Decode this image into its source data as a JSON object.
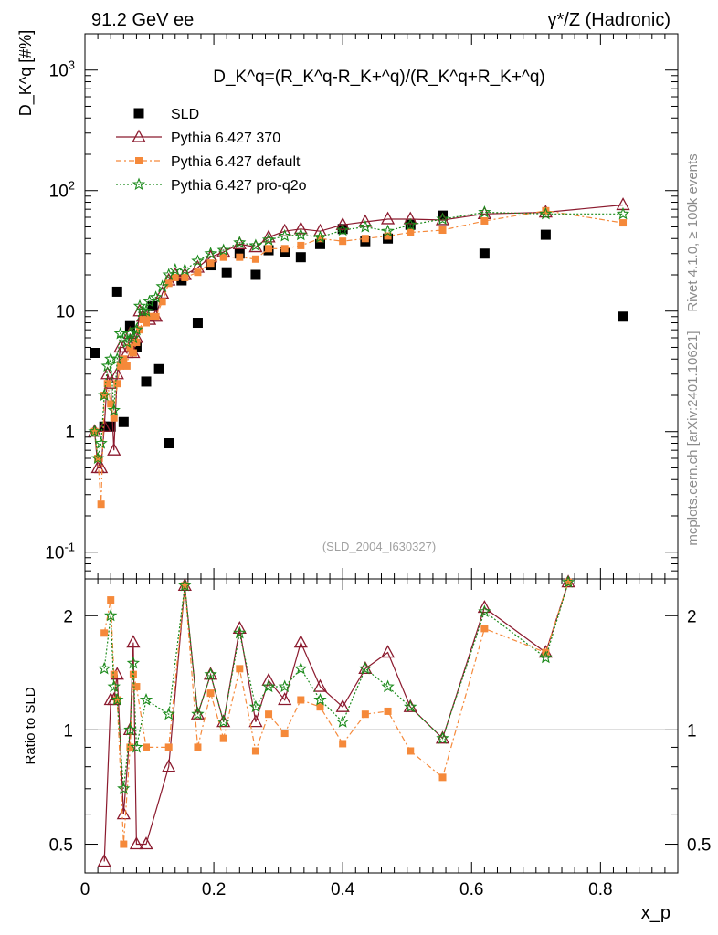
{
  "header": {
    "left": "91.2 GeV ee",
    "right": "γ*/Z (Hadronic)"
  },
  "side_labels": {
    "rivet": "Rivet 4.1.0, ≥ 100k events",
    "mcplots": "mcplots.cern.ch [arXiv:2401.10621]"
  },
  "watermark": "(SLD_2004_I630327)",
  "colors": {
    "sld": "#000000",
    "p370": "#8b1a2e",
    "pdefault": "#f5893a",
    "pq2o": "#1a8a1a"
  },
  "chart_data": [
    {
      "type": "scatter",
      "panel": "main",
      "ylabel": "D_K^q [#%]",
      "formula": "D_K^q=(R_K^q-R_K+^q)/(R_K^q+R_K+^q)",
      "yscale": "log",
      "xlim": [
        0,
        0.92
      ],
      "ylim": [
        0.06,
        2000
      ],
      "ytick_labels": [
        "10^-1",
        "1",
        "10",
        "10^2",
        "10^3"
      ],
      "legend": [
        "SLD",
        "Pythia 6.427 370",
        "Pythia 6.427 default",
        "Pythia 6.427 pro-q2o"
      ],
      "legend_position": "top-left",
      "series": [
        {
          "name": "SLD",
          "x": [
            0.015,
            0.03,
            0.04,
            0.05,
            0.06,
            0.07,
            0.08,
            0.095,
            0.105,
            0.115,
            0.13,
            0.15,
            0.175,
            0.195,
            0.22,
            0.24,
            0.265,
            0.285,
            0.31,
            0.335,
            0.365,
            0.4,
            0.435,
            0.47,
            0.505,
            0.555,
            0.62,
            0.715,
            0.835
          ],
          "values": [
            4.5,
            1.1,
            1.1,
            14.5,
            1.2,
            7.5,
            5.0,
            2.6,
            11,
            3.3,
            0.8,
            18,
            8.0,
            24,
            21,
            30,
            20,
            32,
            31,
            28,
            36,
            48,
            38,
            40,
            52,
            62,
            30,
            43,
            9.0
          ]
        },
        {
          "name": "Pythia 6.427 370",
          "x": [
            0.015,
            0.02,
            0.025,
            0.03,
            0.035,
            0.04,
            0.045,
            0.05,
            0.055,
            0.06,
            0.065,
            0.07,
            0.075,
            0.08,
            0.085,
            0.09,
            0.095,
            0.1,
            0.11,
            0.12,
            0.13,
            0.14,
            0.155,
            0.175,
            0.195,
            0.215,
            0.24,
            0.265,
            0.285,
            0.31,
            0.335,
            0.365,
            0.4,
            0.435,
            0.47,
            0.505,
            0.555,
            0.62,
            0.715,
            0.835
          ],
          "values": [
            1.0,
            0.5,
            0.5,
            1.1,
            3.0,
            2.5,
            0.7,
            3.0,
            5.0,
            5.0,
            4.5,
            6.5,
            4.5,
            6.0,
            10,
            9.0,
            9.0,
            8.5,
            9.0,
            14,
            18,
            20,
            20,
            23,
            28,
            31,
            36,
            34,
            41,
            46,
            48,
            46,
            52,
            55,
            58,
            58,
            57,
            64,
            66,
            76
          ]
        },
        {
          "name": "Pythia 6.427 default",
          "x": [
            0.015,
            0.02,
            0.025,
            0.03,
            0.035,
            0.04,
            0.045,
            0.05,
            0.055,
            0.06,
            0.065,
            0.07,
            0.075,
            0.08,
            0.085,
            0.09,
            0.095,
            0.1,
            0.11,
            0.12,
            0.13,
            0.14,
            0.155,
            0.175,
            0.195,
            0.215,
            0.24,
            0.265,
            0.285,
            0.31,
            0.335,
            0.365,
            0.4,
            0.435,
            0.47,
            0.505,
            0.555,
            0.62,
            0.715,
            0.835
          ],
          "values": [
            1.0,
            0.6,
            0.25,
            2.0,
            2.5,
            1.7,
            1.3,
            2.5,
            3.5,
            4.0,
            3.5,
            5.0,
            4.5,
            5.5,
            7.0,
            8.5,
            8.0,
            9.0,
            9.0,
            12,
            17,
            19,
            19,
            21,
            25,
            28,
            28,
            27,
            33,
            33,
            35,
            40,
            38,
            40,
            42,
            45,
            47,
            56,
            68,
            54
          ]
        },
        {
          "name": "Pythia 6.427 pro-q2o",
          "x": [
            0.015,
            0.02,
            0.025,
            0.03,
            0.035,
            0.04,
            0.045,
            0.05,
            0.055,
            0.06,
            0.065,
            0.07,
            0.075,
            0.08,
            0.085,
            0.09,
            0.095,
            0.1,
            0.11,
            0.12,
            0.13,
            0.14,
            0.155,
            0.175,
            0.195,
            0.215,
            0.24,
            0.265,
            0.285,
            0.31,
            0.335,
            0.365,
            0.4,
            0.435,
            0.47,
            0.505,
            0.555,
            0.62,
            0.715,
            0.835
          ],
          "values": [
            1.0,
            0.6,
            0.8,
            2.0,
            3.5,
            4.0,
            1.5,
            4.0,
            6.5,
            6.0,
            5.5,
            6.5,
            6.0,
            7.0,
            11,
            10,
            10,
            12,
            13,
            16,
            20,
            22,
            22,
            26,
            30,
            32,
            37,
            35,
            39,
            42,
            43,
            41,
            47,
            50,
            46,
            52,
            58,
            66,
            64,
            64
          ]
        }
      ]
    },
    {
      "type": "scatter",
      "panel": "ratio",
      "ylabel": "Ratio to SLD",
      "xlabel": "x_p",
      "yscale": "log",
      "xlim": [
        0,
        0.92
      ],
      "ylim": [
        0.42,
        2.5
      ],
      "ytick_labels": [
        "0.5",
        "1",
        "2"
      ],
      "xtick_labels": [
        "0",
        "0.2",
        "0.4",
        "0.6",
        "0.8"
      ],
      "reference_line": 1,
      "series": [
        {
          "name": "Pythia 6.427 370",
          "x": [
            0.03,
            0.04,
            0.045,
            0.05,
            0.06,
            0.07,
            0.075,
            0.08,
            0.095,
            0.13,
            0.155,
            0.175,
            0.195,
            0.215,
            0.24,
            0.265,
            0.285,
            0.31,
            0.335,
            0.365,
            0.4,
            0.435,
            0.47,
            0.505,
            0.555,
            0.62,
            0.715,
            0.75
          ],
          "values": [
            0.45,
            1.2,
            1.2,
            1.4,
            0.6,
            1.0,
            1.7,
            0.5,
            0.5,
            0.8,
            2.4,
            1.1,
            1.4,
            1.05,
            1.85,
            1.05,
            1.35,
            1.2,
            1.7,
            1.3,
            1.15,
            1.45,
            1.6,
            1.15,
            0.95,
            2.1,
            1.6,
            2.45
          ]
        },
        {
          "name": "Pythia 6.427 default",
          "x": [
            0.03,
            0.04,
            0.045,
            0.05,
            0.06,
            0.07,
            0.075,
            0.08,
            0.095,
            0.13,
            0.155,
            0.175,
            0.195,
            0.215,
            0.24,
            0.265,
            0.285,
            0.31,
            0.335,
            0.365,
            0.4,
            0.435,
            0.47,
            0.505,
            0.555,
            0.62,
            0.715,
            0.75
          ],
          "values": [
            1.8,
            2.2,
            1.4,
            1.2,
            0.5,
            0.9,
            1.4,
            1.3,
            0.9,
            0.9,
            2.4,
            0.9,
            1.25,
            0.95,
            1.45,
            0.88,
            1.1,
            0.98,
            1.2,
            1.15,
            0.92,
            1.1,
            1.12,
            0.88,
            0.75,
            1.85,
            1.6,
            2.45
          ]
        },
        {
          "name": "Pythia 6.427 pro-q2o",
          "x": [
            0.03,
            0.04,
            0.045,
            0.05,
            0.06,
            0.07,
            0.075,
            0.08,
            0.095,
            0.13,
            0.155,
            0.175,
            0.195,
            0.215,
            0.24,
            0.265,
            0.285,
            0.31,
            0.335,
            0.365,
            0.4,
            0.435,
            0.47,
            0.505,
            0.555,
            0.62,
            0.715,
            0.75
          ],
          "values": [
            1.45,
            2.0,
            1.3,
            1.2,
            0.7,
            1.0,
            1.5,
            0.9,
            1.2,
            1.1,
            2.4,
            1.1,
            1.4,
            1.05,
            1.8,
            1.15,
            1.3,
            1.3,
            1.45,
            1.2,
            1.05,
            1.45,
            1.3,
            1.15,
            0.95,
            2.05,
            1.55,
            2.45
          ]
        }
      ]
    }
  ]
}
